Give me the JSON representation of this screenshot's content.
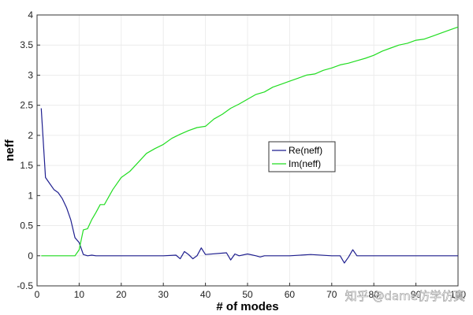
{
  "chart_data": {
    "type": "line",
    "title": "",
    "xlabel": "# of modes",
    "ylabel": "neff",
    "xlim": [
      0,
      100
    ],
    "ylim": [
      -0.5,
      4
    ],
    "x_ticks": [
      "0",
      "10",
      "20",
      "30",
      "40",
      "50",
      "60",
      "70",
      "80",
      "90",
      "100"
    ],
    "y_ticks": [
      "-0.5",
      "0",
      "0.5",
      "1",
      "1.5",
      "2",
      "2.5",
      "3",
      "3.5",
      "4"
    ],
    "grid": true,
    "legend_position": "center-right",
    "series": [
      {
        "name": "Re(neff)",
        "color": "#1f1f8f",
        "x": [
          1,
          2,
          3,
          4,
          5,
          6,
          7,
          8,
          9,
          10,
          11,
          12,
          13,
          14,
          15,
          20,
          25,
          30,
          33,
          34,
          35,
          36,
          37,
          38,
          39,
          40,
          45,
          46,
          47,
          48,
          50,
          52,
          53,
          54,
          55,
          60,
          65,
          70,
          72,
          73,
          74,
          75,
          76,
          77,
          78,
          80,
          85,
          90,
          95,
          100
        ],
        "y": [
          2.45,
          1.3,
          1.2,
          1.1,
          1.05,
          0.95,
          0.8,
          0.6,
          0.3,
          0.22,
          0.02,
          0.0,
          0.01,
          0.0,
          0.0,
          0.0,
          0.0,
          0.0,
          0.01,
          -0.05,
          0.07,
          0.02,
          -0.05,
          0.0,
          0.13,
          0.02,
          0.05,
          -0.07,
          0.03,
          0.0,
          0.03,
          0.0,
          -0.02,
          0.0,
          0.0,
          0.0,
          0.02,
          0.0,
          0.0,
          -0.12,
          -0.02,
          0.1,
          0.0,
          0.0,
          0.0,
          0.0,
          0.0,
          0.0,
          0.0,
          0.0
        ]
      },
      {
        "name": "Im(neff)",
        "color": "#22dd22",
        "x": [
          1,
          5,
          9,
          10,
          11,
          12,
          13,
          14,
          15,
          16,
          18,
          20,
          22,
          24,
          26,
          28,
          30,
          32,
          34,
          36,
          38,
          40,
          42,
          44,
          46,
          48,
          50,
          52,
          54,
          56,
          58,
          60,
          62,
          64,
          66,
          68,
          70,
          72,
          74,
          76,
          78,
          80,
          82,
          84,
          86,
          88,
          90,
          92,
          94,
          96,
          98,
          100
        ],
        "y": [
          0.0,
          0.0,
          0.0,
          0.1,
          0.43,
          0.45,
          0.6,
          0.72,
          0.85,
          0.85,
          1.1,
          1.3,
          1.4,
          1.55,
          1.7,
          1.78,
          1.85,
          1.95,
          2.02,
          2.08,
          2.13,
          2.15,
          2.27,
          2.35,
          2.45,
          2.52,
          2.6,
          2.68,
          2.72,
          2.8,
          2.85,
          2.9,
          2.95,
          3.0,
          3.02,
          3.08,
          3.12,
          3.17,
          3.2,
          3.24,
          3.28,
          3.33,
          3.4,
          3.45,
          3.5,
          3.53,
          3.58,
          3.6,
          3.65,
          3.7,
          3.75,
          3.8
        ]
      }
    ]
  },
  "watermark": "知乎 @dame仿学仿真"
}
